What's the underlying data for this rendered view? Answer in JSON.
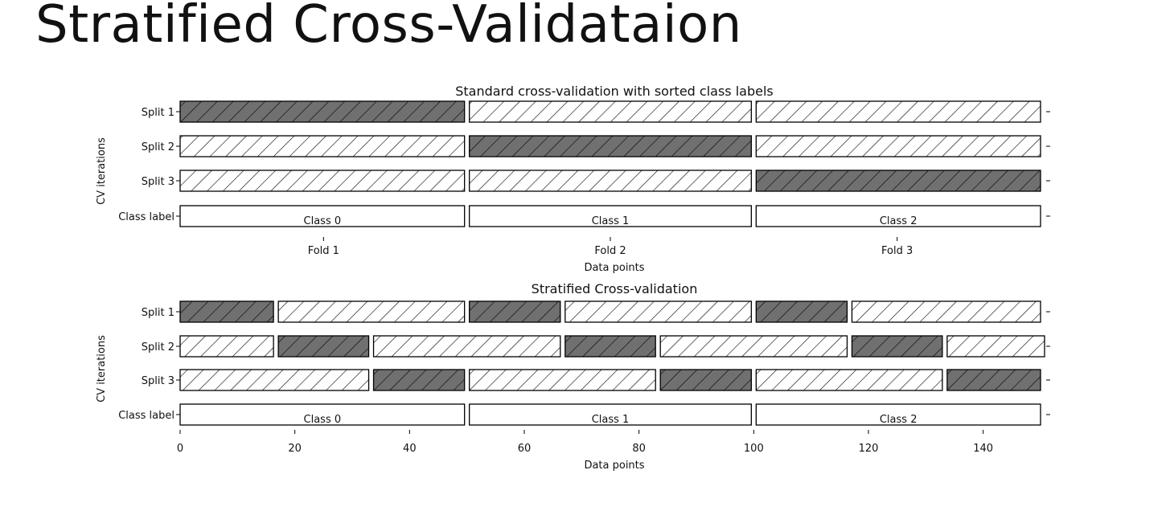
{
  "slide": {
    "title": "Stratified Cross-Validataion"
  },
  "chart_data": [
    {
      "type": "bar",
      "title": "Standard cross-validation with sorted class labels",
      "xlabel": "Data points",
      "ylabel": "CV iterations",
      "x_ticks": [
        {
          "value": 25,
          "label": "Fold 1"
        },
        {
          "value": 75,
          "label": "Fold 2"
        },
        {
          "value": 125,
          "label": "Fold 3"
        }
      ],
      "xlim": [
        0,
        150
      ],
      "rows": [
        {
          "label": "Split 1",
          "segments": [
            {
              "start": 0,
              "end": 50,
              "role": "test"
            },
            {
              "start": 50,
              "end": 100,
              "role": "train"
            },
            {
              "start": 100,
              "end": 150,
              "role": "train"
            }
          ]
        },
        {
          "label": "Split 2",
          "segments": [
            {
              "start": 0,
              "end": 50,
              "role": "train"
            },
            {
              "start": 50,
              "end": 100,
              "role": "test"
            },
            {
              "start": 100,
              "end": 150,
              "role": "train"
            }
          ]
        },
        {
          "label": "Split 3",
          "segments": [
            {
              "start": 0,
              "end": 50,
              "role": "train"
            },
            {
              "start": 50,
              "end": 100,
              "role": "train"
            },
            {
              "start": 100,
              "end": 150,
              "role": "test"
            }
          ]
        },
        {
          "label": "Class label",
          "segments": [
            {
              "start": 0,
              "end": 50,
              "role": "class",
              "text": "Class 0"
            },
            {
              "start": 50,
              "end": 100,
              "role": "class",
              "text": "Class 1"
            },
            {
              "start": 100,
              "end": 150,
              "role": "class",
              "text": "Class 2"
            }
          ]
        }
      ]
    },
    {
      "type": "bar",
      "title": "Stratified Cross-validation",
      "xlabel": "Data points",
      "ylabel": "CV iterations",
      "x_ticks": [
        {
          "value": 0,
          "label": "0"
        },
        {
          "value": 20,
          "label": "20"
        },
        {
          "value": 40,
          "label": "40"
        },
        {
          "value": 60,
          "label": "60"
        },
        {
          "value": 80,
          "label": "80"
        },
        {
          "value": 100,
          "label": "100"
        },
        {
          "value": 120,
          "label": "120"
        },
        {
          "value": 140,
          "label": "140"
        }
      ],
      "xlim": [
        0,
        150
      ],
      "rows": [
        {
          "label": "Split 1",
          "segments": [
            {
              "start": 0,
              "end": 16.7,
              "role": "test"
            },
            {
              "start": 16.7,
              "end": 50,
              "role": "train"
            },
            {
              "start": 50,
              "end": 66.7,
              "role": "test"
            },
            {
              "start": 66.7,
              "end": 100,
              "role": "train"
            },
            {
              "start": 100,
              "end": 116.7,
              "role": "test"
            },
            {
              "start": 116.7,
              "end": 150,
              "role": "train"
            }
          ]
        },
        {
          "label": "Split 2",
          "segments": [
            {
              "start": 0,
              "end": 16.7,
              "role": "train"
            },
            {
              "start": 16.7,
              "end": 33.3,
              "role": "test"
            },
            {
              "start": 33.3,
              "end": 66.7,
              "role": "train"
            },
            {
              "start": 66.7,
              "end": 83.3,
              "role": "test"
            },
            {
              "start": 83.3,
              "end": 116.7,
              "role": "train"
            },
            {
              "start": 116.7,
              "end": 133.3,
              "role": "test"
            },
            {
              "start": 133.3,
              "end": 150.7,
              "role": "train"
            }
          ]
        },
        {
          "label": "Split 3",
          "segments": [
            {
              "start": 0,
              "end": 33.3,
              "role": "train"
            },
            {
              "start": 33.3,
              "end": 50,
              "role": "test"
            },
            {
              "start": 50,
              "end": 83.3,
              "role": "train"
            },
            {
              "start": 83.3,
              "end": 100,
              "role": "test"
            },
            {
              "start": 100,
              "end": 133.3,
              "role": "train"
            },
            {
              "start": 133.3,
              "end": 150,
              "role": "test"
            }
          ]
        },
        {
          "label": "Class label",
          "segments": [
            {
              "start": 0,
              "end": 50,
              "role": "class",
              "text": "Class 0"
            },
            {
              "start": 50,
              "end": 100,
              "role": "class",
              "text": "Class 1"
            },
            {
              "start": 100,
              "end": 150,
              "role": "class",
              "text": "Class 2"
            }
          ]
        }
      ]
    }
  ],
  "colors": {
    "test_fill": "#707070",
    "train_fill": "#ffffff",
    "class_fill": "#ffffff",
    "edge": "#000000",
    "text": "#111111"
  }
}
